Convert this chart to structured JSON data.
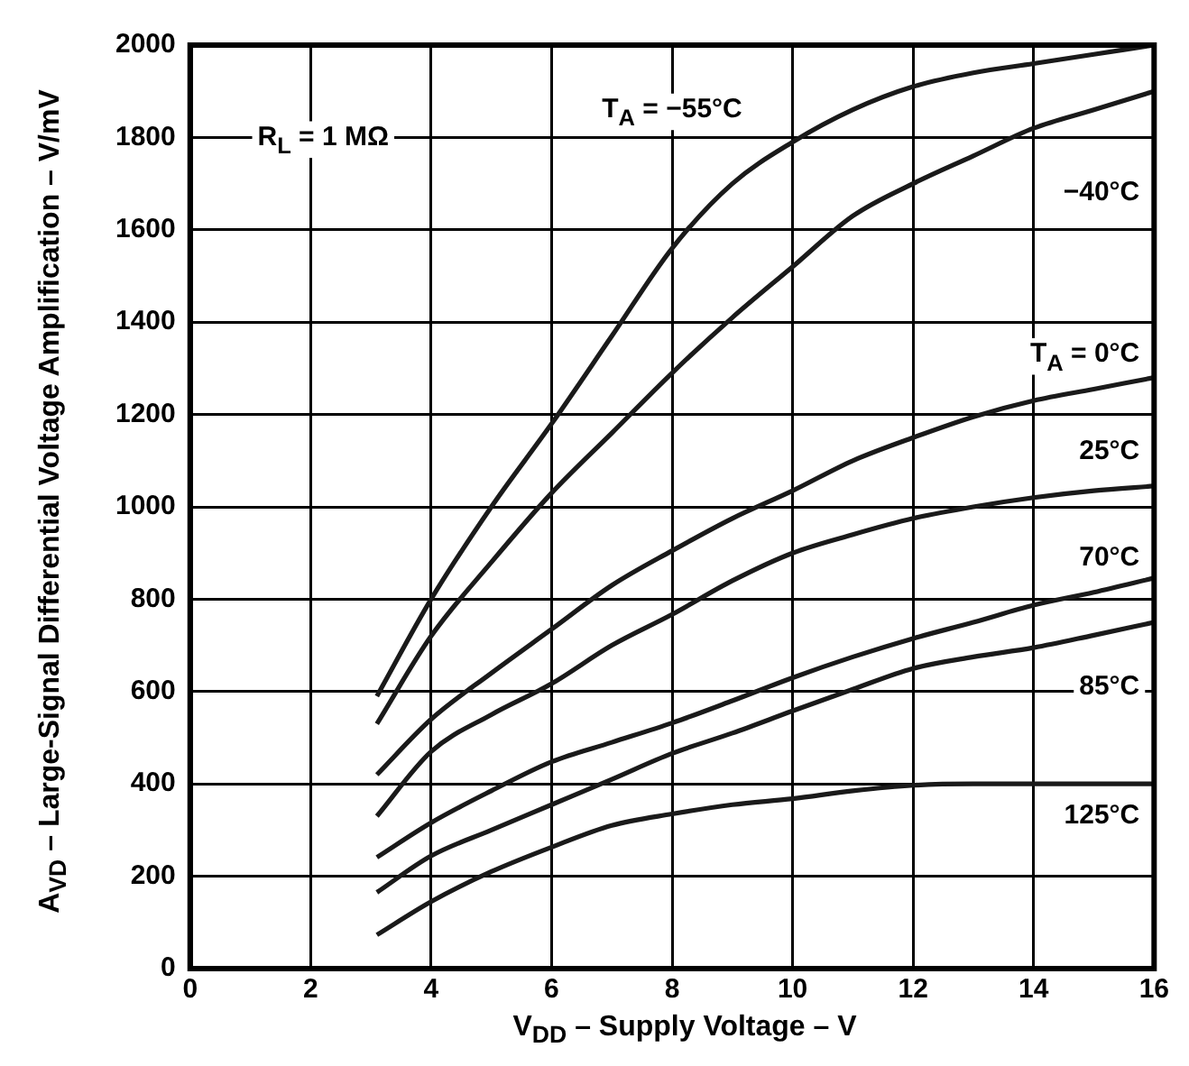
{
  "chart_data": {
    "type": "line",
    "xlabel": "V$_{DD}$ – Supply Voltage – V",
    "ylabel": "A$_{VD}$ – Large-Signal Differential Voltage Amplification – V/mV",
    "xlim": [
      0,
      16
    ],
    "xticks": [
      0,
      2,
      4,
      6,
      8,
      10,
      12,
      14,
      16
    ],
    "ylim": [
      0,
      2000
    ],
    "yticks": [
      0,
      200,
      400,
      600,
      800,
      1000,
      1200,
      1400,
      1600,
      1800,
      2000
    ],
    "grid": true,
    "legend": false,
    "marker": "none",
    "line_style": "solid",
    "annotations": [
      "R$_{L}$ = 1 MΩ"
    ],
    "x": [
      3.1,
      4,
      5,
      6,
      7,
      8,
      9,
      10,
      11,
      12,
      13,
      14,
      15,
      16
    ],
    "series": [
      {
        "name": "T$_{A}$ = −55°C",
        "color": "#1a1a1a",
        "values": [
          590,
          800,
          1000,
          1180,
          1370,
          1560,
          1700,
          1790,
          1860,
          1910,
          1940,
          1960,
          1980,
          2000
        ]
      },
      {
        "name": "−40°C",
        "color": "#1a1a1a",
        "values": [
          530,
          720,
          880,
          1030,
          1160,
          1290,
          1410,
          1520,
          1630,
          1700,
          1760,
          1820,
          1860,
          1900
        ]
      },
      {
        "name": "T$_{A}$ = 0°C",
        "color": "#1a1a1a",
        "values": [
          420,
          540,
          640,
          735,
          830,
          905,
          975,
          1035,
          1100,
          1150,
          1195,
          1230,
          1255,
          1280
        ]
      },
      {
        "name": "25°C",
        "color": "#1a1a1a",
        "values": [
          330,
          470,
          550,
          617,
          700,
          767,
          840,
          900,
          940,
          975,
          1000,
          1020,
          1035,
          1045
        ]
      },
      {
        "name": "70°C",
        "color": "#1a1a1a",
        "values": [
          241,
          316,
          385,
          448,
          490,
          532,
          580,
          630,
          675,
          715,
          750,
          787,
          815,
          846
        ]
      },
      {
        "name": "85°C",
        "color": "#1a1a1a",
        "values": [
          165,
          244,
          300,
          355,
          410,
          466,
          510,
          558,
          605,
          650,
          675,
          695,
          722,
          750
        ]
      },
      {
        "name": "125°C",
        "color": "#1a1a1a",
        "values": [
          73,
          145,
          210,
          263,
          310,
          335,
          355,
          368,
          385,
          397,
          400,
          400,
          400,
          400
        ]
      }
    ]
  }
}
